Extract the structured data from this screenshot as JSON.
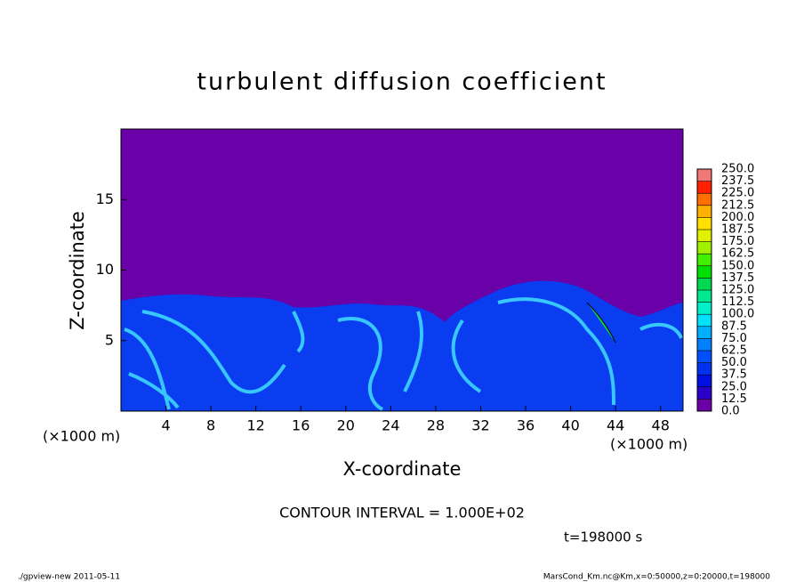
{
  "chart_data": {
    "type": "contour",
    "title": "turbulent diffusion coefficient",
    "x_label": "X-coordinate",
    "y_label": "Z-coordinate",
    "x_unit": "(×1000 m)",
    "y_unit": "(×1000 m)",
    "xlim": [
      0,
      50
    ],
    "ylim": [
      0,
      20
    ],
    "xticks": [
      4,
      8,
      12,
      16,
      20,
      24,
      28,
      32,
      36,
      40,
      44,
      48
    ],
    "yticks": [
      5,
      10,
      15
    ],
    "levels": [
      {
        "value": 0,
        "label": "0.0"
      },
      {
        "value": 12.5,
        "label": "12.5"
      },
      {
        "value": 25,
        "label": "25.0"
      },
      {
        "value": 37.5,
        "label": "37.5"
      },
      {
        "value": 50,
        "label": "50.0"
      },
      {
        "value": 62.5,
        "label": "62.5"
      },
      {
        "value": 75,
        "label": "75.0"
      },
      {
        "value": 87.5,
        "label": "87.5"
      },
      {
        "value": 100,
        "label": "100.0"
      },
      {
        "value": 112.5,
        "label": "112.5"
      },
      {
        "value": 125,
        "label": "125.0"
      },
      {
        "value": 137.5,
        "label": "137.5"
      },
      {
        "value": 150,
        "label": "150.0"
      },
      {
        "value": 162.5,
        "label": "162.5"
      },
      {
        "value": 175,
        "label": "175.0"
      },
      {
        "value": 187.5,
        "label": "187.5"
      },
      {
        "value": 200,
        "label": "200.0"
      },
      {
        "value": 212.5,
        "label": "212.5"
      },
      {
        "value": 225,
        "label": "225.0"
      },
      {
        "value": 237.5,
        "label": "237.5"
      },
      {
        "value": 250,
        "label": "250.0"
      }
    ],
    "colors": [
      "#6a00a8",
      "#2a00c8",
      "#0010e0",
      "#0032f0",
      "#0050ff",
      "#0080ff",
      "#00b0ff",
      "#00e0ff",
      "#00f0c8",
      "#00e890",
      "#00d850",
      "#00e000",
      "#40f000",
      "#a0f000",
      "#e0f000",
      "#ffe000",
      "#ffb000",
      "#ff7000",
      "#ff2000",
      "#f07878"
    ],
    "contour_note": "CONTOUR INTERVAL = 1.000E+02",
    "time_note": "t=198000 s",
    "footer_left": "./gpview-new   2011-05-11",
    "footer_right": "MarsCond_Km.nc@Km,x=0:50000,z=0:20000,t=198000"
  }
}
